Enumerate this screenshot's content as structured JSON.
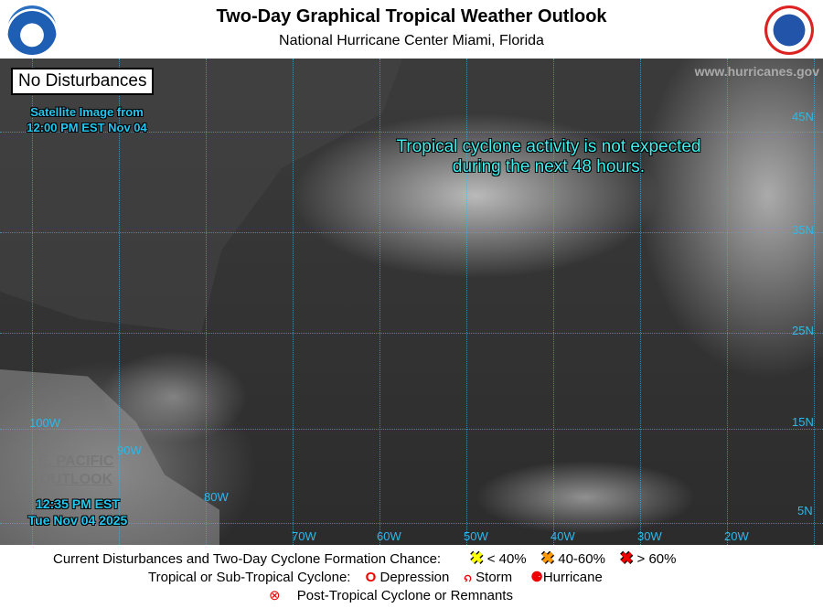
{
  "header": {
    "title": "Two-Day Graphical Tropical Weather Outlook",
    "subtitle": "National Hurricane Center  Miami, Florida",
    "left_logo": "NOAA",
    "right_logo": "National Weather Service"
  },
  "map": {
    "status_box": "No Disturbances",
    "satellite_label": [
      "Satellite Image from",
      "12:00 PM EST Nov 04"
    ],
    "website": "www.hurricanes.gov",
    "message": [
      "Tropical cyclone activity is not expected",
      "during the next 48 hours."
    ],
    "epac_link": [
      "E. PACIFIC",
      "OUTLOOK"
    ],
    "issued": [
      "12:35 PM EST",
      "Tue Nov 04 2025"
    ],
    "lat_labels": [
      "45N",
      "35N",
      "25N",
      "15N",
      "5N"
    ],
    "lon_labels": [
      "100W",
      "90W",
      "80W",
      "70W",
      "60W",
      "50W",
      "40W",
      "30W",
      "20W"
    ]
  },
  "legend": {
    "row1_label": "Current Disturbances and Two-Day Cyclone Formation Chance:",
    "chances": [
      {
        "label": "< 40%",
        "color": "#ffff00"
      },
      {
        "label": "40-60%",
        "color": "#ff9900"
      },
      {
        "label": "> 60%",
        "color": "#ee0000"
      }
    ],
    "row2_label": "Tropical or Sub-Tropical Cyclone:",
    "depression": "Depression",
    "storm": "Storm",
    "hurricane": "Hurricane",
    "post_tropical": "Post-Tropical Cyclone or Remnants"
  }
}
